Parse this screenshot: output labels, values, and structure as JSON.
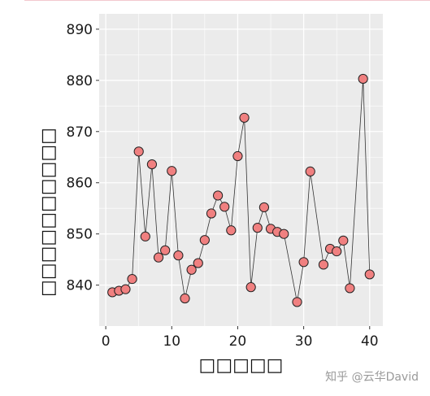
{
  "watermark": "知乎 @云华David",
  "colors": {
    "panel": "#ebebeb",
    "grid": "#ffffff",
    "marker_fill": "#f08080",
    "marker_edge": "#222222",
    "line": "#333333"
  },
  "chart_data": {
    "type": "line",
    "title": "",
    "xlabel": "□□□□□",
    "ylabel": "□□□□□□□□□□",
    "xlim": [
      -1,
      42
    ],
    "ylim": [
      832,
      893
    ],
    "x_ticks": [
      0,
      10,
      20,
      30,
      40
    ],
    "y_ticks": [
      840,
      850,
      860,
      870,
      880,
      890
    ],
    "grid": true,
    "series": [
      {
        "x": [
          1,
          2,
          3,
          4,
          5,
          6,
          7,
          8,
          9,
          10,
          11,
          12,
          13,
          14,
          15,
          16,
          17,
          18,
          19,
          20,
          21,
          22,
          23,
          24,
          25,
          26,
          27,
          29,
          30,
          31,
          33,
          34,
          35,
          36,
          37,
          39,
          40
        ],
        "values": [
          838.6,
          838.9,
          839.2,
          841.2,
          866.1,
          849.5,
          863.6,
          845.4,
          846.8,
          862.3,
          845.8,
          837.4,
          843.0,
          844.3,
          848.8,
          854.0,
          857.5,
          855.3,
          850.7,
          865.2,
          872.7,
          839.6,
          851.2,
          855.2,
          851.0,
          850.4,
          850.0,
          836.7,
          844.5,
          862.2,
          844.0,
          847.1,
          846.6,
          848.7,
          839.4,
          880.3,
          842.1
        ]
      }
    ]
  }
}
